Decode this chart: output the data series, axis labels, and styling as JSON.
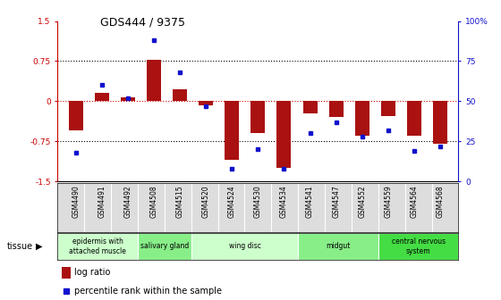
{
  "title": "GDS444 / 9375",
  "samples": [
    "GSM4490",
    "GSM4491",
    "GSM4492",
    "GSM4508",
    "GSM4515",
    "GSM4520",
    "GSM4524",
    "GSM4530",
    "GSM4534",
    "GSM4541",
    "GSM4547",
    "GSM4552",
    "GSM4559",
    "GSM4564",
    "GSM4568"
  ],
  "log_ratio": [
    -0.55,
    0.15,
    0.08,
    0.78,
    0.22,
    -0.08,
    -1.1,
    -0.6,
    -1.25,
    -0.22,
    -0.3,
    -0.65,
    -0.28,
    -0.65,
    -0.8
  ],
  "percentile": [
    18,
    60,
    52,
    88,
    68,
    47,
    8,
    20,
    8,
    30,
    37,
    28,
    32,
    19,
    22
  ],
  "tissue_groups": [
    {
      "label": "epidermis with\nattached muscle",
      "start": 0,
      "end": 3,
      "color": "#ccffcc"
    },
    {
      "label": "salivary gland",
      "start": 3,
      "end": 5,
      "color": "#88ee88"
    },
    {
      "label": "wing disc",
      "start": 5,
      "end": 9,
      "color": "#ccffcc"
    },
    {
      "label": "midgut",
      "start": 9,
      "end": 12,
      "color": "#88ee88"
    },
    {
      "label": "central nervous\nsystem",
      "start": 12,
      "end": 15,
      "color": "#44dd44"
    }
  ],
  "bar_color": "#aa1111",
  "dot_color": "#1111cc",
  "ylim": [
    -1.5,
    1.5
  ],
  "background_color": "#ffffff"
}
